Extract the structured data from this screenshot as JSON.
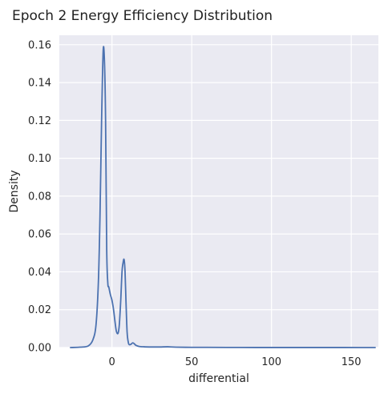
{
  "chart_data": {
    "type": "line",
    "title": "Epoch 2 Energy Efficiency Distribution",
    "xlabel": "differential",
    "ylabel": "Density",
    "xlim": [
      -33,
      167
    ],
    "ylim": [
      0,
      0.165
    ],
    "x_ticks": [
      0,
      50,
      100,
      150
    ],
    "x_tick_labels": [
      "0",
      "50",
      "100",
      "150"
    ],
    "y_ticks": [
      0,
      0.02,
      0.04,
      0.06,
      0.08,
      0.1,
      0.12,
      0.14,
      0.16
    ],
    "y_tick_labels": [
      "0.00",
      "0.02",
      "0.04",
      "0.06",
      "0.08",
      "0.10",
      "0.12",
      "0.14",
      "0.16"
    ],
    "grid": true,
    "background": "#eaeaf2",
    "grid_color": "#ffffff",
    "line_color": "#4c72b0",
    "series": [
      {
        "x": [
          -26,
          -20,
          -15,
          -12,
          -10,
          -8.5,
          -7.5,
          -6.5,
          -5.5,
          -4.7,
          -4.0,
          -3.3,
          -2.6,
          -2.0,
          -1.0,
          0,
          1,
          2,
          2.8,
          3.8,
          4.6,
          5.5,
          6.3,
          7.0,
          7.6,
          8.2,
          8.8,
          9.5,
          10.3,
          11,
          12,
          13,
          14,
          15,
          17,
          20,
          25,
          30,
          35,
          40,
          50,
          60,
          80,
          100,
          120,
          140,
          157,
          165
        ],
        "y": [
          0,
          0.0002,
          0.0008,
          0.004,
          0.012,
          0.035,
          0.07,
          0.12,
          0.157,
          0.151,
          0.12,
          0.052,
          0.034,
          0.032,
          0.028,
          0.025,
          0.02,
          0.013,
          0.0085,
          0.0075,
          0.012,
          0.025,
          0.04,
          0.045,
          0.0465,
          0.04,
          0.024,
          0.008,
          0.0025,
          0.0015,
          0.0018,
          0.0025,
          0.002,
          0.0012,
          0.0006,
          0.0004,
          0.0003,
          0.0003,
          0.0004,
          0.0002,
          0.0001,
          0.0001,
          5e-05,
          3e-05,
          2e-05,
          2e-05,
          1e-05,
          0
        ]
      }
    ]
  }
}
